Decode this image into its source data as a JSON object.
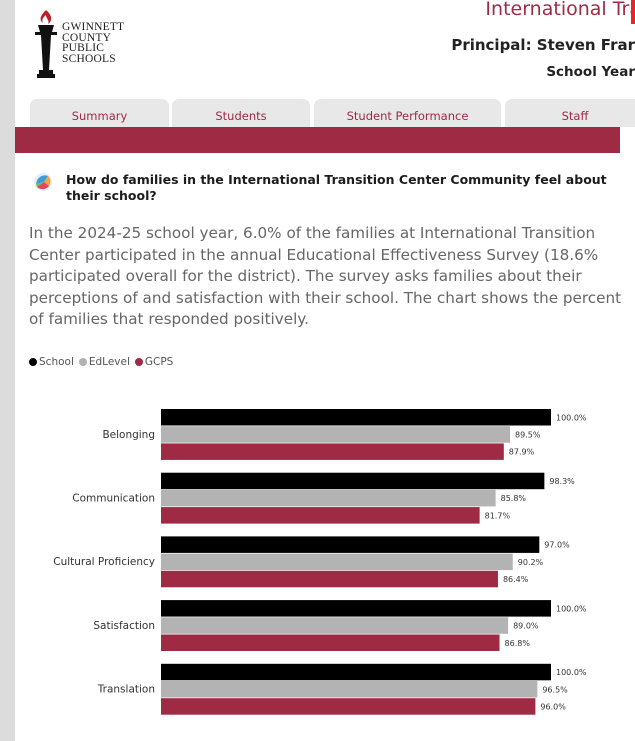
{
  "header": {
    "logo_lines": [
      "GWINNETT",
      "COUNTY",
      "PUBLIC",
      "SCHOOLS"
    ],
    "school_name": "International Tra",
    "principal": "Principal: Steven Frar",
    "school_year": "School Year"
  },
  "tabs": [
    "Summary",
    "Students",
    "Student Performance",
    "Staff"
  ],
  "section": {
    "question": "How do families in the International Transition Center Community feel about their school?",
    "description": "In the 2024-25 school year, 6.0% of the families at International Transition Center participated in the annual Educational Effectiveness Survey (18.6% participated overall for the district). The survey asks families about their perceptions of and satisfaction with their school. The chart shows the percent of families that responded positively."
  },
  "legend": [
    "School",
    "EdLevel",
    "GCPS"
  ],
  "colors": {
    "school": "#000000",
    "edlevel": "#b3b3b3",
    "gcps": "#9e2a44",
    "accent": "#9e2a44"
  },
  "chart_data": {
    "type": "bar",
    "orientation": "horizontal",
    "categories": [
      "Belonging",
      "Communication",
      "Cultural Proficiency",
      "Satisfaction",
      "Translation"
    ],
    "series": [
      {
        "name": "School",
        "values": [
          100.0,
          98.3,
          97.0,
          100.0,
          100.0
        ],
        "labels": [
          "100.0%",
          "98.3%",
          "97.0%",
          "100.0%",
          "100.0%"
        ]
      },
      {
        "name": "EdLevel",
        "values": [
          89.5,
          85.8,
          90.2,
          89.0,
          96.5
        ],
        "labels": [
          "89.5%",
          "85.8%",
          "90.2%",
          "89.0%",
          "96.5%"
        ]
      },
      {
        "name": "GCPS",
        "values": [
          87.9,
          81.7,
          86.4,
          86.8,
          96.0
        ],
        "labels": [
          "87.9%",
          "81.7%",
          "86.4%",
          "86.8%",
          "96.0%"
        ]
      }
    ],
    "xlim": [
      0,
      100
    ],
    "legend_position": "top-left",
    "grid": false
  }
}
